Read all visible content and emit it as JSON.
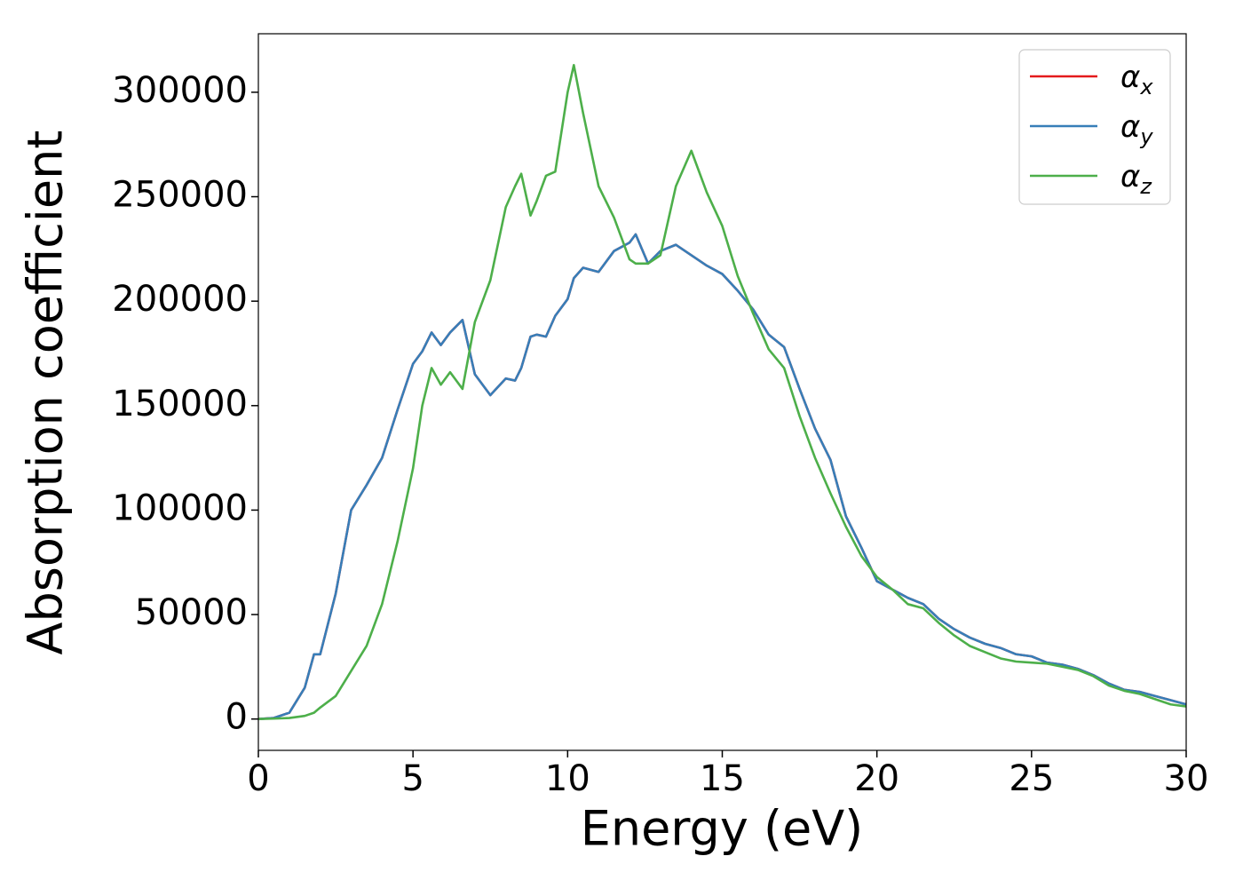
{
  "chart_data": {
    "type": "line",
    "xlabel": "Energy (eV)",
    "ylabel": "Absorption coefficient",
    "x": [
      0,
      0.5,
      1,
      1.5,
      1.8,
      2,
      2.5,
      3,
      3.5,
      4,
      4.5,
      5,
      5.3,
      5.6,
      5.9,
      6.2,
      6.6,
      7,
      7.5,
      8,
      8.3,
      8.5,
      8.8,
      9,
      9.3,
      9.6,
      10,
      10.2,
      10.5,
      11,
      11.5,
      12,
      12.2,
      12.6,
      13,
      13.5,
      14,
      14.5,
      15,
      15.5,
      16,
      16.5,
      17,
      17.5,
      18,
      18.5,
      19,
      19.5,
      20,
      20.5,
      21,
      21.5,
      22,
      22.5,
      23,
      23.5,
      24,
      24.5,
      25,
      25.5,
      26,
      26.5,
      27,
      27.5,
      28,
      28.5,
      29,
      29.5,
      30
    ],
    "series": [
      {
        "name": "αx",
        "color": "#e41a1c",
        "values": [
          0,
          500,
          3000,
          15000,
          31000,
          31000,
          60000,
          100000,
          112000,
          125000,
          148000,
          170000,
          176000,
          185000,
          179000,
          185000,
          191000,
          165000,
          155000,
          163000,
          162000,
          168000,
          183000,
          184000,
          183000,
          193000,
          201000,
          211000,
          216000,
          214000,
          224000,
          228000,
          232000,
          218000,
          224000,
          227000,
          222000,
          217000,
          213000,
          205000,
          196000,
          184000,
          178000,
          158000,
          139000,
          124000,
          97000,
          82000,
          66000,
          62000,
          58000,
          55000,
          48000,
          43000,
          39000,
          36000,
          34000,
          31000,
          30000,
          27000,
          26000,
          24000,
          21000,
          17000,
          14000,
          13000,
          11000,
          9000,
          7000
        ]
      },
      {
        "name": "αy",
        "color": "#377eb8",
        "values": [
          0,
          500,
          3000,
          15000,
          31000,
          31000,
          60000,
          100000,
          112000,
          125000,
          148000,
          170000,
          176000,
          185000,
          179000,
          185000,
          191000,
          165000,
          155000,
          163000,
          162000,
          168000,
          183000,
          184000,
          183000,
          193000,
          201000,
          211000,
          216000,
          214000,
          224000,
          228000,
          232000,
          218000,
          224000,
          227000,
          222000,
          217000,
          213000,
          205000,
          196000,
          184000,
          178000,
          158000,
          139000,
          124000,
          97000,
          82000,
          66000,
          62000,
          58000,
          55000,
          48000,
          43000,
          39000,
          36000,
          34000,
          31000,
          30000,
          27000,
          26000,
          24000,
          21000,
          17000,
          14000,
          13000,
          11000,
          9000,
          7000
        ]
      },
      {
        "name": "αz",
        "color": "#4daf4a",
        "values": [
          0,
          200,
          500,
          1500,
          3000,
          5500,
          11000,
          23000,
          35000,
          55000,
          85000,
          120000,
          150000,
          168000,
          160000,
          166000,
          158000,
          190000,
          210000,
          245000,
          255000,
          261000,
          241000,
          248000,
          260000,
          262000,
          300000,
          313000,
          290000,
          255000,
          240000,
          220000,
          218000,
          218000,
          222000,
          255000,
          272000,
          252000,
          236000,
          212000,
          194000,
          177000,
          168000,
          145000,
          125000,
          108000,
          92000,
          78000,
          68000,
          62000,
          55000,
          53000,
          46000,
          40000,
          35000,
          32000,
          29000,
          27500,
          27000,
          26500,
          25000,
          23500,
          20500,
          16000,
          13500,
          12000,
          9500,
          7000,
          6000
        ]
      }
    ],
    "xlim": [
      0,
      30
    ],
    "xticks": [
      0,
      5,
      10,
      15,
      20,
      25,
      30
    ],
    "ylim": [
      -15000,
      328000
    ],
    "yticks": [
      0,
      50000,
      100000,
      150000,
      200000,
      250000,
      300000
    ],
    "grid": false,
    "legend": "upper right"
  }
}
